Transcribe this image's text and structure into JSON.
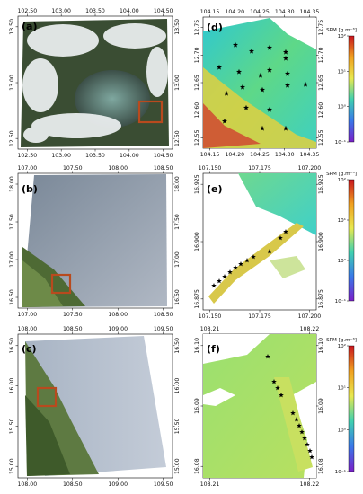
{
  "panels": {
    "a": {
      "label": "(a)",
      "top_ticks": [
        "102.50",
        "103.00",
        "103.50",
        "104.00",
        "104.50"
      ],
      "bottom_ticks": [
        "102.50",
        "103.00",
        "103.50",
        "104.00",
        "104.50"
      ],
      "left_ticks": [
        "13.50",
        "13.00",
        "12.50"
      ],
      "right_ticks": [
        "13.50",
        "13.00",
        "12.50"
      ]
    },
    "b": {
      "label": "(b)",
      "top_ticks": [
        "107.00",
        "107.50",
        "108.00",
        "108.50"
      ],
      "bottom_ticks": [
        "107.00",
        "107.50",
        "108.00",
        "108.50"
      ],
      "left_ticks": [
        "18.00",
        "17.50",
        "17.00",
        "16.50"
      ],
      "right_ticks": [
        "18.00",
        "17.50",
        "17.00",
        "16.50"
      ]
    },
    "c": {
      "label": "(c)",
      "top_ticks": [
        "108.00",
        "108.50",
        "109.00",
        "109.50"
      ],
      "bottom_ticks": [
        "108.00",
        "108.50",
        "109.00",
        "109.50"
      ],
      "left_ticks": [
        "16.50",
        "16.00",
        "15.50",
        "15.00"
      ],
      "right_ticks": [
        "16.50",
        "16.00",
        "15.50",
        "15.00"
      ]
    },
    "d": {
      "label": "(d)",
      "top_ticks": [
        "104.15",
        "104.20",
        "104.25",
        "104.30",
        "104.35"
      ],
      "bottom_ticks": [
        "104.15",
        "104.20",
        "104.25",
        "104.30",
        "104.35"
      ],
      "left_ticks": [
        "12.75",
        "12.70",
        "12.65",
        "12.60",
        "12.55"
      ],
      "right_ticks": [
        "12.75",
        "12.70",
        "12.65",
        "12.60",
        "12.55"
      ]
    },
    "e": {
      "label": "(e)",
      "top_ticks": [
        "107.150",
        "107.175",
        "107.200"
      ],
      "bottom_ticks": [
        "107.150",
        "107.175",
        "107.200"
      ],
      "left_ticks": [
        "16.925",
        "16.900",
        "16.875"
      ],
      "right_ticks": [
        "16.925",
        "16.900",
        "16.875"
      ]
    },
    "f": {
      "label": "(f)",
      "top_ticks": [
        "108.21",
        "108.22"
      ],
      "bottom_ticks": [
        "108.21",
        "108.22"
      ],
      "left_ticks": [
        "16.10",
        "16.09",
        "16.08"
      ],
      "right_ticks": [
        "16.10",
        "16.09",
        "16.08"
      ]
    }
  },
  "colorbar": {
    "title": "SPM [g.m⁻³]",
    "ticks": [
      "10²",
      "10¹",
      "10⁰",
      "10⁻¹"
    ]
  },
  "colors": {
    "box": "#b84a1e",
    "water_cyan": "#3fd0c8",
    "water_green": "#6ee07a",
    "sediment_yellow": "#d8c84a"
  }
}
